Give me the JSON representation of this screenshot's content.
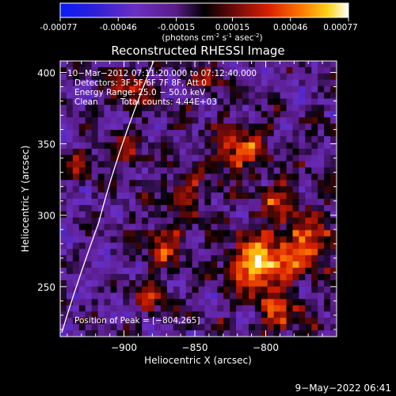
{
  "colorbar": {
    "ticks": [
      "-0.00077",
      "-0.00046",
      "-0.00015",
      "0.00015",
      "0.00046",
      "0.00077"
    ],
    "units_parts": [
      "(photons cm",
      "-2",
      " s",
      "-1",
      " asec",
      "-2",
      ")"
    ],
    "range": [
      -0.00077,
      0.00077
    ]
  },
  "chart_data": {
    "type": "heatmap",
    "title": "Reconstructed RHESSI Image",
    "xlabel": "Heliocentric X (arcsec)",
    "ylabel": "Heliocentric Y (arcsec)",
    "xlim": [
      -945,
      -750
    ],
    "ylim": [
      215,
      408
    ],
    "x_ticks": [
      -900,
      -850,
      -800
    ],
    "x_tick_labels": [
      "−900",
      "−850",
      "−800"
    ],
    "y_ticks": [
      250,
      300,
      350,
      400
    ],
    "y_tick_labels": [
      "250",
      "300",
      "350",
      "400"
    ],
    "peak": [
      -804,
      265
    ],
    "annotations": {
      "time": "10−Mar−2012 07:11:20.000 to 07:12:40.000",
      "detectors": "Detectors: 3F 5F 6F 7F 8F, Att 0",
      "energy": "Energy Range: 25.0 − 50.0 keV",
      "clean_method": "Clean",
      "total_counts": "Total counts: 4.44E+03",
      "peak_text": "Position of Peak = [−804,265]"
    },
    "limb": true
  },
  "footer": {
    "timestamp": "9−May−2022 06:41"
  }
}
